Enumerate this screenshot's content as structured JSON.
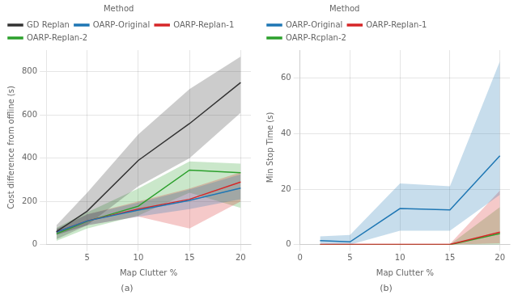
{
  "chart_data": [
    {
      "type": "line",
      "title": "(a)",
      "xlabel": "Map Clutter %",
      "ylabel": "Cost difference from offline (s)",
      "x": [
        2,
        5,
        10,
        15,
        20
      ],
      "xlim": [
        1,
        21
      ],
      "xticks": [
        5,
        10,
        15,
        20
      ],
      "ylim": [
        0,
        900
      ],
      "yticks": [
        0,
        200,
        400,
        600,
        800
      ],
      "grid": true,
      "legend": "upper left",
      "legend_title": "Method",
      "series": [
        {
          "name": "GD Replan",
          "color": "#333333",
          "values": [
            60,
            155,
            390,
            560,
            750
          ],
          "lower": [
            25,
            90,
            270,
            400,
            610
          ],
          "upper": [
            90,
            240,
            510,
            720,
            870
          ]
        },
        {
          "name": "OARP-Original",
          "color": "#1f77b4",
          "values": [
            58,
            110,
            160,
            205,
            262
          ],
          "lower": [
            45,
            90,
            130,
            165,
            210
          ],
          "upper": [
            72,
            140,
            195,
            255,
            325
          ]
        },
        {
          "name": "OARP-Replan-1",
          "color": "#d62728",
          "values": [
            58,
            110,
            165,
            210,
            290
          ],
          "lower": [
            45,
            90,
            130,
            75,
            200
          ],
          "upper": [
            72,
            140,
            200,
            260,
            335
          ]
        },
        {
          "name": "OARP-Replan-2",
          "color": "#2ca02c",
          "values": [
            50,
            108,
            178,
            345,
            333
          ],
          "lower": [
            18,
            75,
            135,
            240,
            170
          ],
          "upper": [
            78,
            150,
            260,
            385,
            375
          ]
        }
      ]
    },
    {
      "type": "line",
      "title": "(b)",
      "xlabel": "Map Clutter %",
      "ylabel": "Min Stop Time (s)",
      "x": [
        2,
        5,
        10,
        15,
        20
      ],
      "xlim": [
        0,
        21
      ],
      "xticks": [
        0,
        5,
        10,
        15,
        20
      ],
      "ylim": [
        0,
        70
      ],
      "yticks": [
        0,
        20,
        40,
        60
      ],
      "grid": true,
      "legend": "upper left",
      "legend_title": "Method",
      "series": [
        {
          "name": "OARP-Original",
          "color": "#1f77b4",
          "values": [
            1.5,
            1.0,
            13.0,
            12.5,
            32.0
          ],
          "lower": [
            0.3,
            0.0,
            5.0,
            5.0,
            18.0
          ],
          "upper": [
            3.0,
            3.5,
            22.0,
            21.0,
            66.0
          ]
        },
        {
          "name": "OARP-Replan-1",
          "color": "#d62728",
          "values": [
            0.1,
            0.1,
            0.1,
            0.1,
            4.5
          ],
          "lower": [
            0.0,
            0.0,
            0.0,
            0.0,
            0.5
          ],
          "upper": [
            0.3,
            0.3,
            0.3,
            0.3,
            19.5
          ]
        },
        {
          "name": "OARP-Rcplan-2",
          "color": "#2ca02c",
          "values": [
            0.0,
            0.0,
            0.0,
            0.0,
            4.0
          ],
          "lower": [
            0.0,
            0.0,
            0.0,
            0.0,
            0.0
          ],
          "upper": [
            0.1,
            0.1,
            0.1,
            0.1,
            13.5
          ]
        }
      ]
    }
  ]
}
